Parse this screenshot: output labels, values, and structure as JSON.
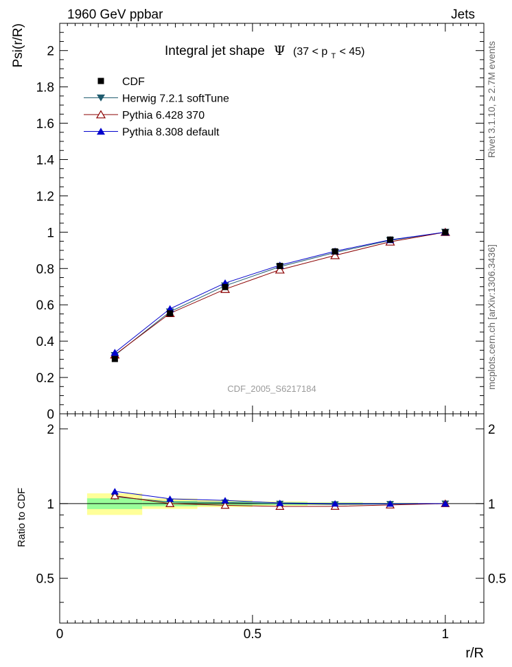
{
  "header": {
    "left": "1960 GeV ppbar",
    "right": "Jets"
  },
  "side_text": {
    "top": "Rivet 3.1.10, ≥ 2.7M events",
    "bottom": "mcplots.cern.ch [arXiv:1306.3436]"
  },
  "chart_data": {
    "type": "line",
    "title": "Integral jet shape",
    "title_symbol": "Ψ",
    "title_range": "(37 < p",
    "title_range_sub": "T",
    "title_range_end": " < 45)",
    "watermark": "CDF_2005_S6217184",
    "ylabel": "Psi(r/R)",
    "ratio_ylabel": "Ratio to CDF",
    "xlabel": "r/R",
    "xlim": [
      0,
      1.1
    ],
    "ylim": [
      0,
      2.15
    ],
    "ratio_ylim": [
      0.33,
      2.3
    ],
    "x_ticks": [
      "0",
      "0.5",
      "1"
    ],
    "y_ticks": [
      "0",
      "0.2",
      "0.4",
      "0.6",
      "0.8",
      "1",
      "1.2",
      "1.4",
      "1.6",
      "1.8",
      "2"
    ],
    "ratio_ticks": [
      "0.5",
      "1",
      "2"
    ],
    "x": [
      0.143,
      0.286,
      0.429,
      0.571,
      0.714,
      0.857,
      1.0
    ],
    "series": [
      {
        "name": "CDF",
        "marker": "square",
        "color": "#000000",
        "values": [
          0.302,
          0.553,
          0.698,
          0.814,
          0.894,
          0.959,
          1.0
        ]
      },
      {
        "name": "Herwig 7.2.1 softTune",
        "marker": "triangle-down",
        "color": "#1f5b6e",
        "values": [
          0.322,
          0.562,
          0.705,
          0.81,
          0.888,
          0.955,
          1.0
        ],
        "ratio": [
          1.065,
          1.015,
          1.01,
          0.998,
          0.993,
          0.996,
          1.0
        ]
      },
      {
        "name": "Pythia 6.428 370",
        "marker": "triangle-open",
        "color": "#8b0000",
        "values": [
          0.325,
          0.553,
          0.686,
          0.793,
          0.872,
          0.947,
          1.0
        ],
        "ratio": [
          1.075,
          1.0,
          0.984,
          0.974,
          0.975,
          0.987,
          1.0
        ]
      },
      {
        "name": "Pythia 8.308 default",
        "marker": "triangle-up",
        "color": "#0000cc",
        "values": [
          0.337,
          0.578,
          0.72,
          0.818,
          0.895,
          0.958,
          1.0
        ],
        "ratio": [
          1.12,
          1.045,
          1.03,
          1.005,
          1.0,
          0.999,
          1.0
        ]
      }
    ],
    "bands": {
      "x_edges": [
        0.071,
        0.214,
        0.357,
        0.5,
        0.643,
        0.786,
        0.929,
        1.0
      ],
      "green_half": [
        0.05,
        0.025,
        0.018,
        0.012,
        0.008,
        0.005,
        0.002
      ],
      "yellow_half": [
        0.1,
        0.048,
        0.032,
        0.02,
        0.013,
        0.008,
        0.003
      ]
    }
  }
}
